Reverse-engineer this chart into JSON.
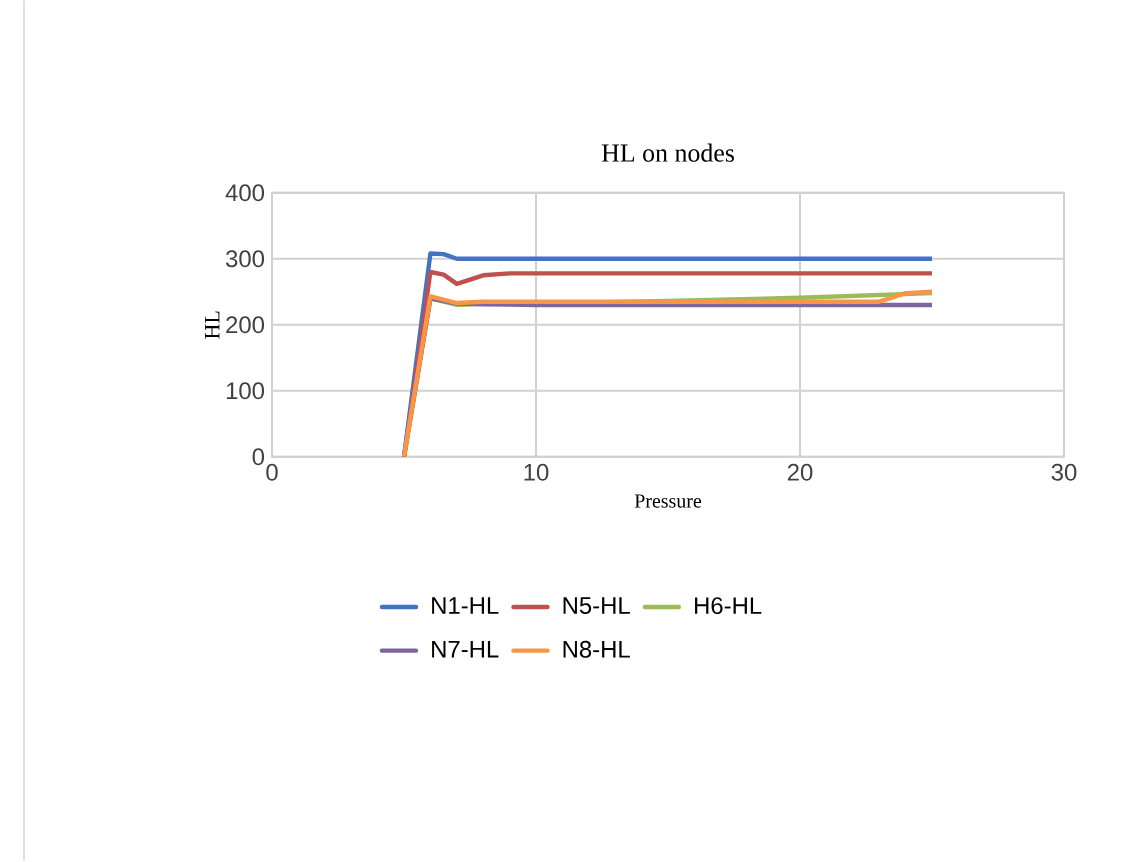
{
  "chart_data": {
    "type": "line",
    "title": "HL on nodes",
    "xlabel": "Pressure",
    "ylabel": "HL",
    "xlim": [
      0,
      30
    ],
    "xticks": [
      0,
      10,
      20,
      30
    ],
    "ylim": [
      0,
      400
    ],
    "yticks": [
      0,
      100,
      200,
      300,
      400
    ],
    "grid": true,
    "legend": "bottom",
    "marker": "none",
    "line_style": "solid",
    "series": [
      {
        "name": "N1-HL",
        "color": "#4472c4",
        "x": [
          5,
          6,
          6.5,
          7,
          8,
          10,
          15,
          20,
          25
        ],
        "values": [
          0,
          308,
          307,
          300,
          300,
          300,
          300,
          300,
          300
        ]
      },
      {
        "name": "N5-HL",
        "color": "#c0504d",
        "x": [
          5,
          6,
          6.5,
          7,
          8,
          9,
          10,
          15,
          20,
          25
        ],
        "values": [
          0,
          280,
          276,
          262,
          275,
          278,
          278,
          278,
          278,
          278
        ]
      },
      {
        "name": "H6-HL",
        "color": "#9bbb59",
        "x": [
          5,
          6,
          7,
          8,
          10,
          15,
          20,
          25
        ],
        "values": [
          0,
          240,
          230,
          232,
          232,
          236,
          241,
          248
        ]
      },
      {
        "name": "N7-HL",
        "color": "#8064a2",
        "x": [
          5,
          6,
          7,
          8,
          10,
          15,
          20,
          25
        ],
        "values": [
          0,
          240,
          232,
          231,
          230,
          230,
          230,
          230
        ]
      },
      {
        "name": "N8-HL",
        "color": "#f79646",
        "x": [
          5,
          6,
          7,
          8,
          10,
          15,
          20,
          23,
          24,
          25
        ],
        "values": [
          0,
          243,
          233,
          235,
          235,
          235,
          235,
          235,
          248,
          250
        ]
      }
    ]
  }
}
